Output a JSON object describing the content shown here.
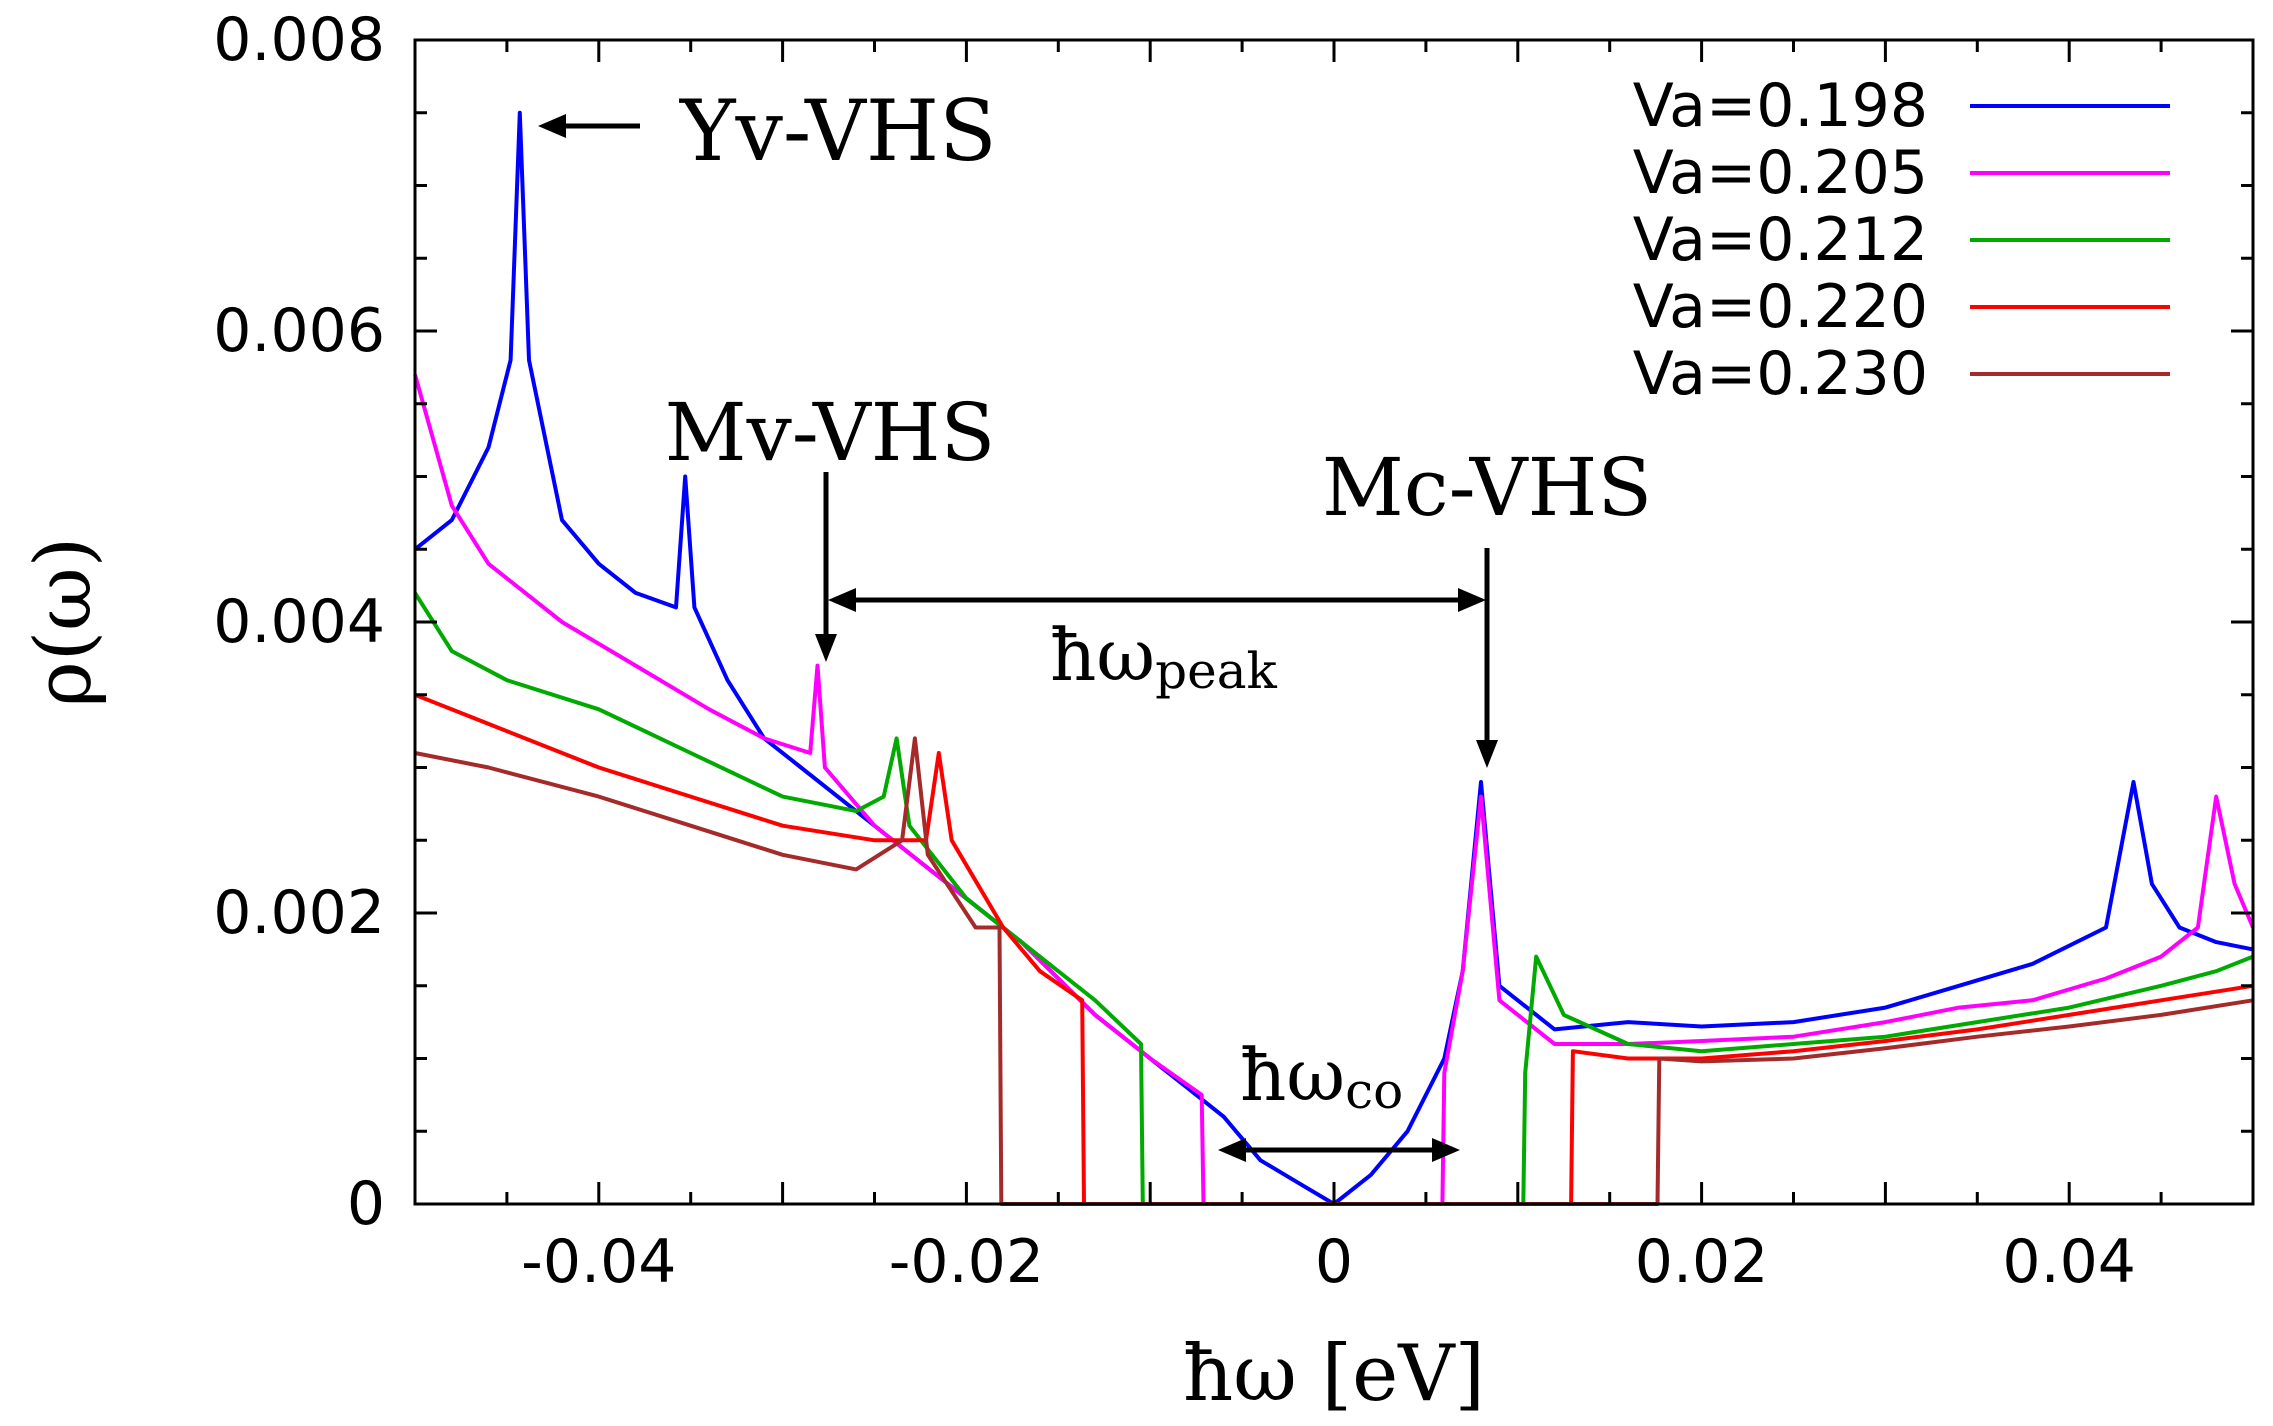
{
  "chart_data": {
    "type": "line",
    "xlabel": "ħω [eV]",
    "ylabel": "ρ(ω)",
    "xlim": [
      -0.05,
      0.05
    ],
    "ylim": [
      0,
      0.008
    ],
    "grid": false,
    "legend_position": "top-right",
    "x_ticks": [
      -0.04,
      -0.02,
      0,
      0.02,
      0.04
    ],
    "x_tick_labels": [
      "-0.04",
      "-0.02",
      "0",
      "0.02",
      "0.04"
    ],
    "y_ticks": [
      0,
      0.002,
      0.004,
      0.006,
      0.008
    ],
    "y_tick_labels": [
      "0",
      "0.002",
      "0.004",
      "0.006",
      "0.008"
    ],
    "series": [
      {
        "name": "Va=0.198",
        "color": "#0000ff",
        "points": [
          [
            -0.05,
            0.0045
          ],
          [
            -0.048,
            0.0047
          ],
          [
            -0.046,
            0.0052
          ],
          [
            -0.0448,
            0.0058
          ],
          [
            -0.0443,
            0.0075
          ],
          [
            -0.0438,
            0.0058
          ],
          [
            -0.042,
            0.0047
          ],
          [
            -0.04,
            0.0044
          ],
          [
            -0.038,
            0.0042
          ],
          [
            -0.0358,
            0.0041
          ],
          [
            -0.0353,
            0.005
          ],
          [
            -0.0348,
            0.0041
          ],
          [
            -0.033,
            0.0036
          ],
          [
            -0.031,
            0.0032
          ],
          [
            -0.029,
            0.003
          ],
          [
            -0.027,
            0.0028
          ],
          [
            -0.025,
            0.0026
          ],
          [
            -0.022,
            0.0023
          ],
          [
            -0.02,
            0.0021
          ],
          [
            -0.017,
            0.0018
          ],
          [
            -0.013,
            0.0013
          ],
          [
            -0.01,
            0.001
          ],
          [
            -0.008,
            0.0008
          ],
          [
            -0.006,
            0.0006
          ],
          [
            -0.004,
            0.0003
          ],
          [
            -0.002,
            0.00015
          ],
          [
            0,
            0
          ],
          [
            0.002,
            0.0002
          ],
          [
            0.004,
            0.0005
          ],
          [
            0.006,
            0.001
          ],
          [
            0.007,
            0.0016
          ],
          [
            0.008,
            0.0029
          ],
          [
            0.009,
            0.0015
          ],
          [
            0.012,
            0.0012
          ],
          [
            0.016,
            0.00125
          ],
          [
            0.02,
            0.00122
          ],
          [
            0.025,
            0.00125
          ],
          [
            0.03,
            0.00135
          ],
          [
            0.034,
            0.0015
          ],
          [
            0.038,
            0.00165
          ],
          [
            0.042,
            0.0019
          ],
          [
            0.0435,
            0.0029
          ],
          [
            0.0445,
            0.0022
          ],
          [
            0.046,
            0.0019
          ],
          [
            0.048,
            0.0018
          ],
          [
            0.05,
            0.00175
          ]
        ]
      },
      {
        "name": "Va=0.205",
        "color": "#ff00ff",
        "points": [
          [
            -0.05,
            0.0057
          ],
          [
            -0.048,
            0.0048
          ],
          [
            -0.046,
            0.0044
          ],
          [
            -0.042,
            0.004
          ],
          [
            -0.038,
            0.0037
          ],
          [
            -0.034,
            0.0034
          ],
          [
            -0.031,
            0.0032
          ],
          [
            -0.0285,
            0.0031
          ],
          [
            -0.0281,
            0.0037
          ],
          [
            -0.0277,
            0.003
          ],
          [
            -0.025,
            0.0026
          ],
          [
            -0.022,
            0.0023
          ],
          [
            -0.02,
            0.0021
          ],
          [
            -0.017,
            0.0018
          ],
          [
            -0.013,
            0.0013
          ],
          [
            -0.01,
            0.001
          ],
          [
            -0.0072,
            0.00075
          ],
          [
            -0.0071,
            0
          ],
          [
            0.0059,
            0
          ],
          [
            0.006,
            0.0009
          ],
          [
            0.007,
            0.0016
          ],
          [
            0.008,
            0.0028
          ],
          [
            0.009,
            0.0014
          ],
          [
            0.012,
            0.0011
          ],
          [
            0.016,
            0.0011
          ],
          [
            0.02,
            0.00112
          ],
          [
            0.025,
            0.00115
          ],
          [
            0.03,
            0.00125
          ],
          [
            0.034,
            0.00135
          ],
          [
            0.038,
            0.0014
          ],
          [
            0.042,
            0.00155
          ],
          [
            0.045,
            0.0017
          ],
          [
            0.047,
            0.0019
          ],
          [
            0.048,
            0.0028
          ],
          [
            0.049,
            0.0022
          ],
          [
            0.05,
            0.0019
          ]
        ]
      },
      {
        "name": "Va=0.212",
        "color": "#00aa00",
        "points": [
          [
            -0.05,
            0.0042
          ],
          [
            -0.048,
            0.0038
          ],
          [
            -0.045,
            0.0036
          ],
          [
            -0.04,
            0.0034
          ],
          [
            -0.035,
            0.0031
          ],
          [
            -0.03,
            0.0028
          ],
          [
            -0.026,
            0.0027
          ],
          [
            -0.0245,
            0.0028
          ],
          [
            -0.0238,
            0.0032
          ],
          [
            -0.0231,
            0.0026
          ],
          [
            -0.02,
            0.0021
          ],
          [
            -0.017,
            0.0018
          ],
          [
            -0.013,
            0.0014
          ],
          [
            -0.0105,
            0.0011
          ],
          [
            -0.0104,
            0
          ],
          [
            0.0103,
            0
          ],
          [
            0.0104,
            0.0009
          ],
          [
            0.011,
            0.0017
          ],
          [
            0.0125,
            0.0013
          ],
          [
            0.016,
            0.0011
          ],
          [
            0.02,
            0.00105
          ],
          [
            0.025,
            0.0011
          ],
          [
            0.03,
            0.00115
          ],
          [
            0.035,
            0.00125
          ],
          [
            0.04,
            0.00135
          ],
          [
            0.045,
            0.0015
          ],
          [
            0.048,
            0.0016
          ],
          [
            0.05,
            0.0017
          ]
        ]
      },
      {
        "name": "Va=0.220",
        "color": "#ff0000",
        "points": [
          [
            -0.05,
            0.0035
          ],
          [
            -0.046,
            0.0033
          ],
          [
            -0.04,
            0.003
          ],
          [
            -0.035,
            0.0028
          ],
          [
            -0.03,
            0.0026
          ],
          [
            -0.025,
            0.0025
          ],
          [
            -0.0222,
            0.0025
          ],
          [
            -0.0215,
            0.0031
          ],
          [
            -0.0208,
            0.0025
          ],
          [
            -0.018,
            0.0019
          ],
          [
            -0.016,
            0.0016
          ],
          [
            -0.0137,
            0.0014
          ],
          [
            -0.0136,
            0
          ],
          [
            0.0129,
            0
          ],
          [
            0.013,
            0.00105
          ],
          [
            0.016,
            0.001
          ],
          [
            0.02,
            0.001
          ],
          [
            0.025,
            0.00105
          ],
          [
            0.03,
            0.00112
          ],
          [
            0.035,
            0.0012
          ],
          [
            0.04,
            0.0013
          ],
          [
            0.045,
            0.0014
          ],
          [
            0.05,
            0.0015
          ]
        ]
      },
      {
        "name": "Va=0.230",
        "color": "#a52a2a",
        "points": [
          [
            -0.05,
            0.0031
          ],
          [
            -0.046,
            0.003
          ],
          [
            -0.04,
            0.0028
          ],
          [
            -0.035,
            0.0026
          ],
          [
            -0.03,
            0.0024
          ],
          [
            -0.026,
            0.0023
          ],
          [
            -0.0235,
            0.0025
          ],
          [
            -0.0228,
            0.0032
          ],
          [
            -0.0221,
            0.0024
          ],
          [
            -0.0195,
            0.0019
          ],
          [
            -0.0182,
            0.0019
          ],
          [
            -0.0181,
            0
          ],
          [
            0.0176,
            0
          ],
          [
            0.0177,
            0.001
          ],
          [
            0.02,
            0.00098
          ],
          [
            0.025,
            0.001
          ],
          [
            0.03,
            0.00107
          ],
          [
            0.035,
            0.00115
          ],
          [
            0.04,
            0.00122
          ],
          [
            0.045,
            0.0013
          ],
          [
            0.05,
            0.0014
          ]
        ]
      }
    ],
    "annotations": {
      "yv": "Yv-VHS",
      "mv": "Mv-VHS",
      "mc": "Mc-VHS",
      "peak_main": "ħω",
      "peak_sub": "peak",
      "co_main": "ħω",
      "co_sub": "co"
    }
  }
}
